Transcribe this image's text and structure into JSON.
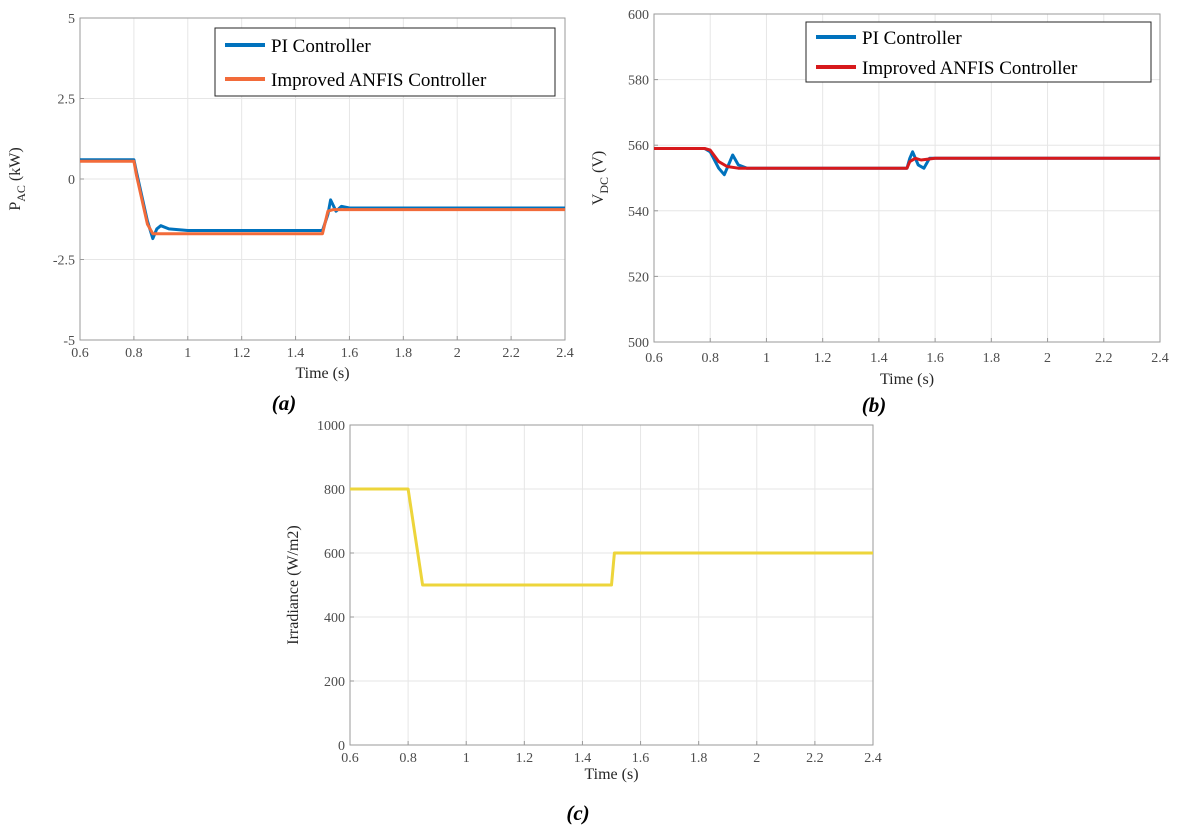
{
  "chart_data": [
    {
      "type": "line",
      "panel_label": "(a)",
      "xlabel": "Time (s)",
      "ylabel": "P",
      "ylabel_sub": "AC",
      "ylabel_unit": " (kW)",
      "xlim": [
        0.6,
        2.4
      ],
      "ylim": [
        -5,
        5
      ],
      "xticks": [
        "0.6",
        "0.8",
        "1",
        "1.2",
        "1.4",
        "1.6",
        "1.8",
        "2",
        "2.2",
        "2.4"
      ],
      "yticks": [
        "-5",
        "-2.5",
        "0",
        "2.5",
        "5"
      ],
      "grid": true,
      "legend": "top-right",
      "series": [
        {
          "name": "PI Controller",
          "color": "#0072BD",
          "x": [
            0.6,
            0.8,
            0.81,
            0.85,
            0.87,
            0.885,
            0.9,
            0.93,
            1.0,
            1.2,
            1.4,
            1.5,
            1.52,
            1.53,
            1.55,
            1.57,
            1.6,
            2.0,
            2.4
          ],
          "y": [
            0.6,
            0.6,
            0.2,
            -1.3,
            -1.85,
            -1.55,
            -1.45,
            -1.55,
            -1.6,
            -1.6,
            -1.6,
            -1.6,
            -1.1,
            -0.65,
            -1.0,
            -0.85,
            -0.9,
            -0.9,
            -0.9
          ]
        },
        {
          "name": "Improved ANFIS Controller",
          "color": "#F26B3A",
          "x": [
            0.6,
            0.8,
            0.81,
            0.85,
            0.87,
            0.9,
            1.0,
            1.2,
            1.4,
            1.5,
            1.52,
            1.54,
            1.6,
            2.0,
            2.4
          ],
          "y": [
            0.55,
            0.55,
            0.1,
            -1.4,
            -1.7,
            -1.7,
            -1.7,
            -1.7,
            -1.7,
            -1.7,
            -1.0,
            -0.95,
            -0.95,
            -0.95,
            -0.95
          ]
        }
      ]
    },
    {
      "type": "line",
      "panel_label": "(b)",
      "xlabel": "Time (s)",
      "ylabel": "V",
      "ylabel_sub": "DC",
      "ylabel_unit": " (V)",
      "xlim": [
        0.6,
        2.4
      ],
      "ylim": [
        500,
        600
      ],
      "xticks": [
        "0.6",
        "0.8",
        "1",
        "1.2",
        "1.4",
        "1.6",
        "1.8",
        "2",
        "2.2",
        "2.4"
      ],
      "yticks": [
        "500",
        "520",
        "540",
        "560",
        "580",
        "600"
      ],
      "grid": true,
      "legend": "top-right",
      "series": [
        {
          "name": "PI Controller",
          "color": "#0072BD",
          "x": [
            0.6,
            0.78,
            0.8,
            0.83,
            0.85,
            0.87,
            0.88,
            0.9,
            0.93,
            1.0,
            1.5,
            1.51,
            1.52,
            1.54,
            1.56,
            1.58,
            1.6,
            2.0,
            2.4
          ],
          "y": [
            559,
            559,
            558,
            553,
            551,
            555,
            557,
            554,
            553,
            553,
            553,
            556,
            558,
            554,
            553,
            556,
            556,
            556,
            556
          ]
        },
        {
          "name": "Improved ANFIS Controller",
          "color": "#D7191C",
          "x": [
            0.6,
            0.78,
            0.8,
            0.83,
            0.86,
            0.9,
            1.0,
            1.5,
            1.51,
            1.53,
            1.55,
            1.6,
            2.0,
            2.4
          ],
          "y": [
            559,
            559,
            558.5,
            555,
            553.5,
            553,
            553,
            553,
            555,
            556,
            555.5,
            556,
            556,
            556
          ]
        }
      ]
    },
    {
      "type": "line",
      "panel_label": "(c)",
      "xlabel": "Time (s)",
      "ylabel": "Irradiance (W/m2)",
      "xlim": [
        0.6,
        2.4
      ],
      "ylim": [
        0,
        1000
      ],
      "xticks": [
        "0.6",
        "0.8",
        "1",
        "1.2",
        "1.4",
        "1.6",
        "1.8",
        "2",
        "2.2",
        "2.4"
      ],
      "yticks": [
        "0",
        "200",
        "400",
        "600",
        "800",
        "1000"
      ],
      "grid": true,
      "series": [
        {
          "color": "#EDD53B",
          "x": [
            0.6,
            0.8,
            0.85,
            1.5,
            1.51,
            2.4
          ],
          "y": [
            800,
            800,
            500,
            500,
            600,
            600
          ]
        }
      ]
    }
  ]
}
